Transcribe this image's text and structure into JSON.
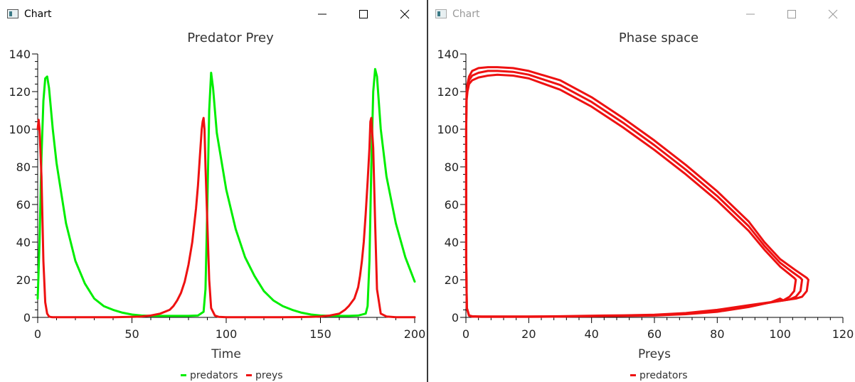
{
  "windows": [
    {
      "title": "Chart",
      "active": true
    },
    {
      "title": "Chart",
      "active": false
    }
  ],
  "colors": {
    "predators": "#00ee00",
    "preys": "#ee1111"
  },
  "chart_data": [
    {
      "type": "line",
      "title": "Predator Prey",
      "xlabel": "Time",
      "ylabel": "",
      "xlim": [
        0,
        200
      ],
      "ylim": [
        0,
        140
      ],
      "xticks": [
        "0",
        "50",
        "100",
        "150",
        "200"
      ],
      "yticks": [
        "0",
        "20",
        "40",
        "60",
        "80",
        "100",
        "120",
        "140"
      ],
      "legend_position": "bottom-center",
      "series": [
        {
          "name": "predators",
          "color": "#00ee00",
          "x": [
            0,
            1,
            2,
            3,
            4,
            5,
            6,
            8,
            10,
            15,
            20,
            25,
            30,
            35,
            40,
            45,
            50,
            55,
            60,
            65,
            70,
            75,
            80,
            85,
            88,
            89,
            90,
            91,
            92,
            93,
            95,
            100,
            105,
            110,
            115,
            120,
            125,
            130,
            135,
            140,
            145,
            150,
            155,
            160,
            165,
            170,
            174,
            175,
            176,
            177,
            178,
            179,
            180,
            182,
            185,
            190,
            195,
            200
          ],
          "y": [
            10,
            40,
            85,
            115,
            127,
            128,
            122,
            100,
            82,
            50,
            30,
            18,
            10,
            6,
            4,
            2.5,
            1.5,
            1,
            0.8,
            0.8,
            0.8,
            0.8,
            0.8,
            1,
            3,
            15,
            60,
            110,
            130,
            122,
            98,
            68,
            47,
            32,
            22,
            14,
            9,
            6,
            4,
            2.5,
            1.5,
            1,
            0.8,
            0.8,
            0.8,
            1,
            2,
            6,
            30,
            80,
            120,
            132,
            128,
            100,
            75,
            50,
            32,
            19
          ]
        },
        {
          "name": "preys",
          "color": "#ee1111",
          "x": [
            0,
            0.5,
            1,
            2,
            3,
            4,
            5,
            6,
            7,
            8,
            10,
            15,
            20,
            30,
            40,
            50,
            55,
            60,
            65,
            70,
            72,
            74,
            76,
            78,
            80,
            82,
            84,
            85,
            86,
            87,
            87.5,
            88,
            88.5,
            89,
            90,
            91,
            92,
            94,
            96,
            100,
            110,
            120,
            130,
            140,
            145,
            150,
            155,
            160,
            163,
            165,
            168,
            170,
            171,
            172,
            173,
            174,
            175,
            176,
            176.5,
            177,
            178,
            179,
            180,
            182,
            185,
            190,
            200
          ],
          "y": [
            100,
            105,
            100,
            75,
            30,
            8,
            2,
            0.5,
            0.2,
            0.1,
            0.1,
            0.1,
            0.1,
            0.1,
            0.1,
            0.3,
            0.5,
            1,
            2,
            4,
            6,
            9,
            13,
            19,
            28,
            40,
            58,
            70,
            85,
            100,
            104,
            106,
            100,
            80,
            50,
            20,
            5,
            1,
            0.3,
            0.1,
            0.1,
            0.1,
            0.1,
            0.2,
            0.3,
            0.5,
            1,
            2,
            4,
            6,
            10,
            16,
            22,
            30,
            40,
            55,
            72,
            90,
            104,
            106,
            90,
            50,
            15,
            2,
            0.5,
            0.1,
            0.1
          ]
        }
      ]
    },
    {
      "type": "line",
      "title": "Phase space",
      "xlabel": "Preys",
      "ylabel": "",
      "xlim": [
        0,
        120
      ],
      "ylim": [
        0,
        140
      ],
      "xticks": [
        "0",
        "20",
        "40",
        "60",
        "80",
        "100",
        "120"
      ],
      "yticks": [
        "0",
        "20",
        "40",
        "60",
        "80",
        "100",
        "120",
        "140"
      ],
      "legend_position": "bottom-center",
      "series": [
        {
          "name": "predators",
          "color": "#ee1111",
          "loops": [
            {
              "x": [
                105,
                104.5,
                103,
                101,
                100,
                97,
                90,
                80,
                70,
                60,
                50,
                44,
                30,
                20,
                10,
                5,
                2,
                1,
                0.3,
                0.1,
                0.1,
                0.1,
                0.1,
                0.2,
                0.5,
                1,
                2,
                4,
                7,
                10,
                15,
                20,
                30,
                40,
                50,
                60,
                70,
                80,
                90,
                95,
                100,
                103,
                104.5,
                105
              ],
              "y": [
                20,
                14,
                11,
                9,
                10,
                8,
                5.5,
                3,
                1.7,
                1,
                0.8,
                0.7,
                0.4,
                0.3,
                0.3,
                0.3,
                0.4,
                1,
                5,
                30,
                60,
                85,
                100,
                115,
                120,
                124,
                126,
                127.5,
                128.5,
                129,
                128.5,
                127,
                121,
                112,
                101,
                89,
                76,
                62,
                46,
                36,
                27,
                23,
                21,
                20
              ]
            },
            {
              "x": [
                107,
                106.5,
                105,
                103,
                101,
                99,
                90,
                80,
                70,
                60,
                50,
                44,
                30,
                20,
                10,
                5,
                2,
                1,
                0.3,
                0.1,
                0.1,
                0.1,
                0.1,
                0.2,
                0.5,
                1,
                2,
                4,
                7,
                10,
                15,
                20,
                30,
                40,
                50,
                60,
                70,
                80,
                90,
                95,
                100,
                104,
                106.5,
                107
              ],
              "y": [
                20,
                14,
                11,
                9.5,
                9,
                8.5,
                6,
                3.5,
                2,
                1.2,
                0.9,
                0.8,
                0.5,
                0.4,
                0.4,
                0.4,
                0.5,
                1,
                5,
                30,
                60,
                85,
                100,
                117,
                122,
                126,
                128.5,
                130,
                131,
                131,
                130.5,
                129,
                123.5,
                114.5,
                103.5,
                91.5,
                78.5,
                64.5,
                48.5,
                38,
                29,
                24,
                21,
                20
              ]
            },
            {
              "x": [
                109,
                108.5,
                107,
                105,
                103,
                101,
                90,
                80,
                70,
                60,
                50,
                44,
                30,
                20,
                10,
                5,
                2,
                1,
                0.3,
                0.1,
                0.1,
                0.1,
                0.1,
                0.2,
                0.5,
                1,
                2,
                4,
                7,
                10,
                15,
                20,
                30,
                40,
                50,
                60,
                70,
                80,
                90,
                95,
                100,
                105,
                108.5,
                109
              ],
              "y": [
                20,
                14,
                11,
                10,
                9.5,
                9,
                6.5,
                4,
                2.3,
                1.4,
                1.1,
                1,
                0.6,
                0.5,
                0.5,
                0.5,
                0.6,
                1,
                5,
                30,
                60,
                85,
                100,
                119,
                124,
                128,
                131,
                132.5,
                133,
                133,
                132.5,
                131,
                126,
                117,
                106,
                94,
                81,
                67,
                51,
                40,
                31,
                25,
                21,
                20
              ]
            }
          ]
        }
      ]
    }
  ]
}
